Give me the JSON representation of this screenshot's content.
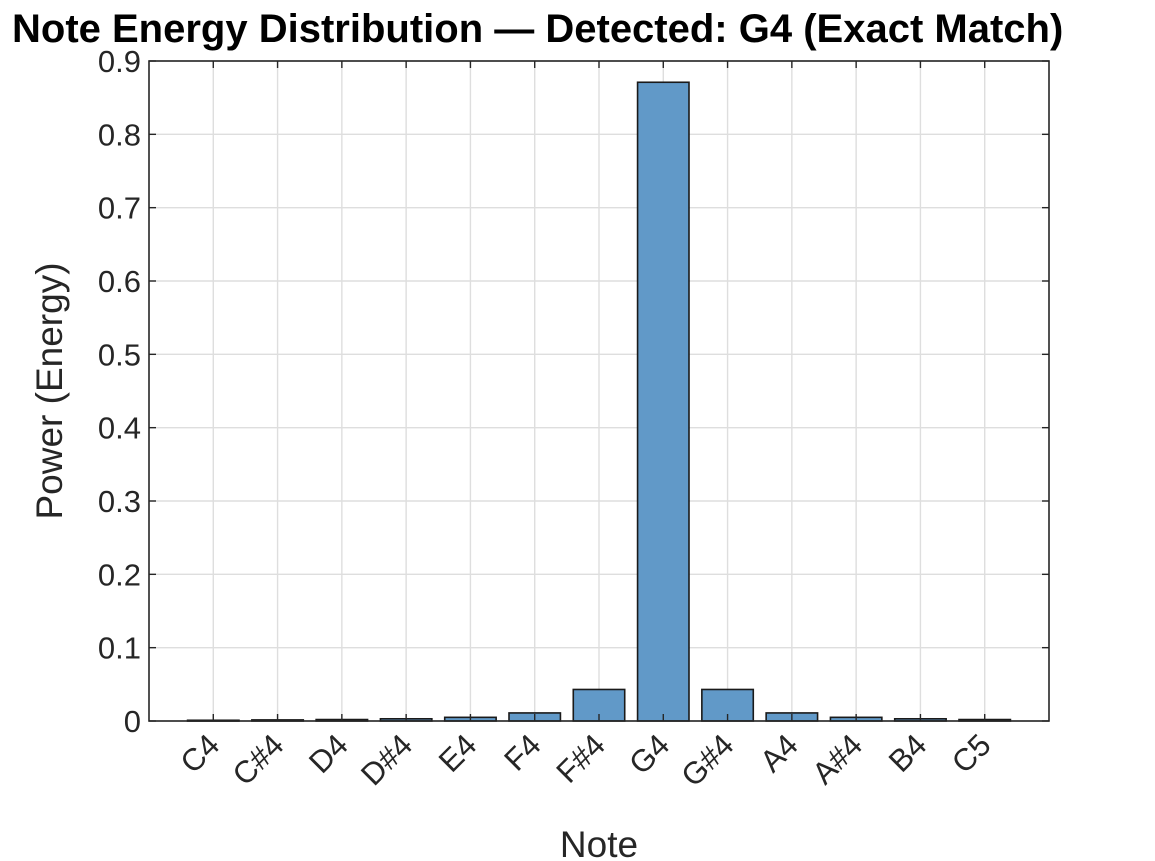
{
  "chart_data": {
    "type": "bar",
    "title": "Note Energy Distribution — Detected: G4 (Exact Match)",
    "xlabel": "Note",
    "ylabel": "Power (Energy)",
    "categories": [
      "C4",
      "C#4",
      "D4",
      "D#4",
      "E4",
      "F4",
      "F#4",
      "G4",
      "G#4",
      "A4",
      "A#4",
      "B4",
      "C5"
    ],
    "values": [
      0.001,
      0.0015,
      0.002,
      0.003,
      0.005,
      0.011,
      0.043,
      0.871,
      0.043,
      0.011,
      0.005,
      0.003,
      0.002
    ],
    "ylim": [
      0,
      0.9
    ],
    "yticks": [
      "0",
      "0.1",
      "0.2",
      "0.3",
      "0.4",
      "0.5",
      "0.6",
      "0.7",
      "0.8",
      "0.9"
    ],
    "grid": true,
    "legend": "none",
    "bar_color": "#6199c8"
  }
}
